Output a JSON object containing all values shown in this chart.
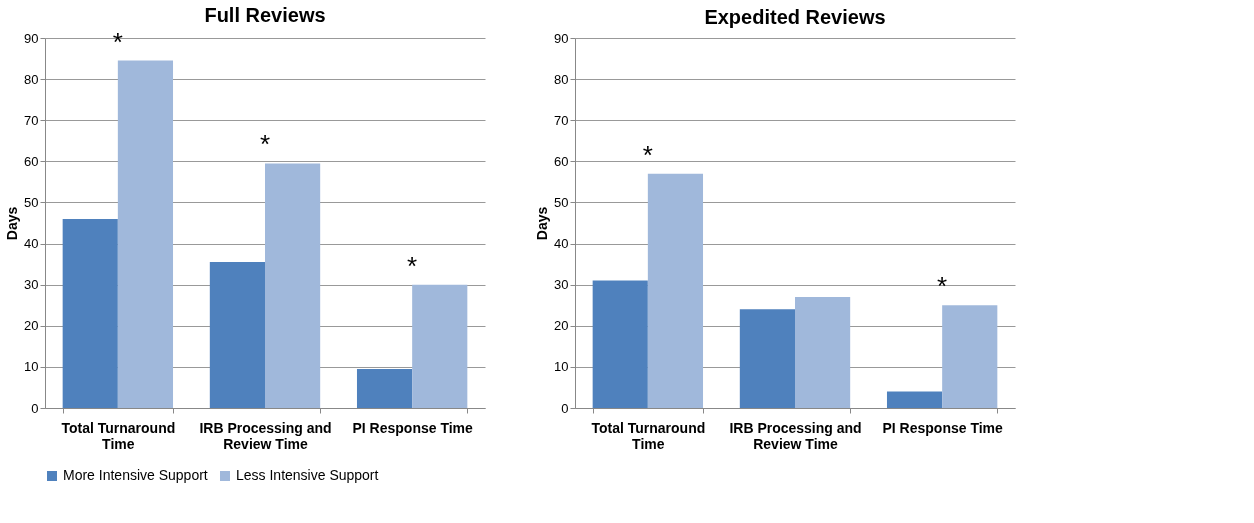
{
  "chart_data": [
    {
      "type": "bar",
      "title": "Full Reviews",
      "ylabel": "Days",
      "categories": [
        "Total Turnaround Time",
        "IRB Processing and Review Time",
        "PI Response Time"
      ],
      "series": [
        {
          "name": "More Intensive Support",
          "color": "#4f81bd",
          "values": [
            46,
            35.5,
            9.5
          ]
        },
        {
          "name": "Less Intensive Support",
          "color": "#a0b8db",
          "values": [
            84.5,
            59.5,
            30
          ]
        }
      ],
      "ylim": [
        0,
        90
      ],
      "yticks": [
        0,
        10,
        20,
        30,
        40,
        50,
        60,
        70,
        80,
        90
      ],
      "grid": "y",
      "legend": "bottom",
      "annotations": [
        {
          "text": "*",
          "x": "Total Turnaround Time",
          "y": 84.5
        },
        {
          "text": "*",
          "x": "IRB Processing and Review Time",
          "y": 59.5
        },
        {
          "text": "*",
          "x": "PI Response Time",
          "y": 30
        }
      ]
    },
    {
      "type": "bar",
      "title": "Expedited Reviews",
      "ylabel": "Days",
      "categories": [
        "Total Turnaround Time",
        "IRB Processing and Review Time",
        "PI Response Time"
      ],
      "series": [
        {
          "name": "More Intensive Support",
          "color": "#4f81bd",
          "values": [
            31,
            24,
            4
          ]
        },
        {
          "name": "Less Intensive Support",
          "color": "#a0b8db",
          "values": [
            57,
            27,
            25
          ]
        }
      ],
      "ylim": [
        0,
        90
      ],
      "yticks": [
        0,
        10,
        20,
        30,
        40,
        50,
        60,
        70,
        80,
        90
      ],
      "grid": "y",
      "legend": "bottom",
      "annotations": [
        {
          "text": "*",
          "x": "Total Turnaround Time",
          "y": 57
        },
        {
          "text": "*",
          "x": "PI Response Time",
          "y": 25
        }
      ]
    }
  ]
}
